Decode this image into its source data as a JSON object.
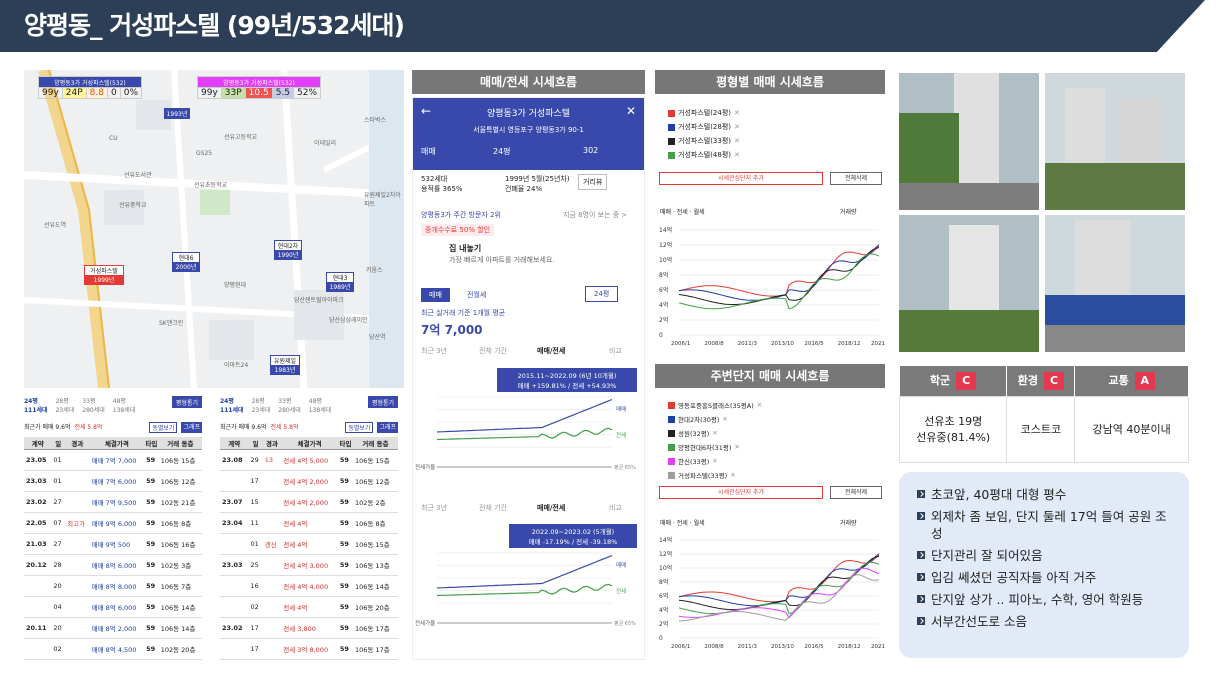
{
  "header": {
    "title": "양평동_ 거성파스텔 (99년/532세대)"
  },
  "panels": {
    "trend": "매매/전세 시세흐름",
    "pyeong": "평형별 매매 시세흐름",
    "nearby": "주변단지 매매 시세흐름"
  },
  "map": {
    "head_left": "양평동3가 거성파스텔(532)",
    "head_right": "양평동3가 거성파스텔(532)",
    "cells_left": [
      "99y",
      "24P",
      "8.8",
      "0",
      "0%"
    ],
    "cells_right": [
      "99y",
      "33P",
      "10.5",
      "5.5",
      "52%"
    ],
    "pins": [
      {
        "name": "",
        "year": "1993년"
      },
      {
        "name": "현대6",
        "year": "2000년"
      },
      {
        "name": "현대2차",
        "year": "1990년"
      },
      {
        "name": "현대3",
        "year": "1989년"
      },
      {
        "name": "거성파스텔",
        "year": "1999년"
      },
      {
        "name": "유원제일",
        "year": "1983년"
      }
    ],
    "labels": [
      "선유고등학교",
      "선유도서관",
      "선유중학교",
      "선유초등학교",
      "선유도역",
      "GS25",
      "SK앤크린",
      "양평현대",
      "CU",
      "이마트24",
      "당산센트럴아이파크",
      "당산역",
      "스타벅스",
      "이데일리",
      "유원제일2차아파트",
      "키움스",
      "당산삼성래미안"
    ]
  },
  "deals_left": {
    "pyeong": "24평",
    "units": "111세대",
    "alt": [
      "28평",
      "33평",
      "48평"
    ],
    "alt_units": [
      "23세대",
      "280세대",
      "138세대"
    ],
    "btn": "평형통기",
    "max": "최근가 매매 9.6억",
    "rent": "전세 5.8억",
    "btn2": "동별보기",
    "btn3": "그래프",
    "head": [
      "계약",
      "일",
      "경과",
      "체결가격",
      "타입",
      "거래 동층"
    ],
    "rows": [
      [
        "23.05",
        "01",
        "",
        "매매 7억 7,000",
        "59",
        "106동 15층"
      ],
      [
        "23.03",
        "01",
        "",
        "매매 7억 6,000",
        "59",
        "106동 12층"
      ],
      [
        "23.02",
        "27",
        "",
        "매매 7억 9,500",
        "59",
        "102동 21층"
      ],
      [
        "22.05",
        "07",
        "최고가",
        "매매 9억 6,000",
        "59",
        "106동 8층"
      ],
      [
        "21.03",
        "27",
        "",
        "매매 9억 500",
        "59",
        "106동 16층"
      ],
      [
        "20.12",
        "28",
        "",
        "매매 8억 6,000",
        "59",
        "102동 3층"
      ],
      [
        "",
        "20",
        "",
        "매매 8억 8,000",
        "59",
        "106동 7층"
      ],
      [
        "",
        "04",
        "",
        "매매 8억 6,000",
        "59",
        "106동 14층"
      ],
      [
        "20.11",
        "20",
        "",
        "매매 8억 2,000",
        "59",
        "106동 14층"
      ],
      [
        "",
        "02",
        "",
        "매매 8억 4,500",
        "59",
        "102동 20층"
      ]
    ]
  },
  "deals_right": {
    "pyeong": "24평",
    "units": "111세대",
    "alt": [
      "28평",
      "33평",
      "48평"
    ],
    "alt_units": [
      "23세대",
      "280세대",
      "138세대"
    ],
    "btn": "평형통기",
    "max": "최근가 매매 9.6억",
    "rent": "전세 5.8억",
    "btn2": "동별보기",
    "btn3": "그래프",
    "head": [
      "계약",
      "일",
      "경과",
      "체결가격",
      "타입",
      "거래 동층"
    ],
    "rows": [
      [
        "23.08",
        "29",
        "13",
        "전세 4억 5,000",
        "59",
        "106동 15층"
      ],
      [
        "",
        "17",
        "",
        "전세 4억 2,000",
        "59",
        "106동 12층"
      ],
      [
        "23.07",
        "15",
        "",
        "전세 4억 2,000",
        "59",
        "102동 2층"
      ],
      [
        "23.04",
        "11",
        "",
        "전세 4억",
        "59",
        "106동 8층"
      ],
      [
        "",
        "01",
        "갱신",
        "전세 4억",
        "59",
        "106동 15층"
      ],
      [
        "23.03",
        "25",
        "",
        "전세 4억 3,000",
        "59",
        "106동 13층"
      ],
      [
        "",
        "16",
        "",
        "전세 4억 4,000",
        "59",
        "106동 14층"
      ],
      [
        "",
        "02",
        "",
        "전세 4억",
        "59",
        "106동 20층"
      ],
      [
        "23.02",
        "17",
        "",
        "전세 3,800",
        "59",
        "106동 17층"
      ],
      [
        "",
        "17",
        "",
        "전세 3억 8,000",
        "59",
        "106동 17층"
      ]
    ]
  },
  "app": {
    "title": "양평동3가 거성파스텔",
    "addr": "서울특별시 영등포구 양평동3가 90-1",
    "tab1": "매매",
    "tab2": "24평",
    "comments": "302",
    "units": "532세대",
    "ratio": "용적률 365%",
    "built": "1999년 5월(25년차)",
    "bldg": "건폐율 24%",
    "dist": "거리뷰",
    "visitor": "양평동3가 주간 방문자 2위",
    "now": "지금 8명이 보는 중 >",
    "promo": "중개수수료 50% 할인",
    "sell": "집 내놓기",
    "sell_sub": "가장 빠르게 아파트를 거래해보세요.",
    "t_sale": "매매",
    "t_rent": "전월세",
    "sel": "24평",
    "avg_label": "최근 실거래 기준 1개월 평균",
    "avg": "7억 7,000",
    "tabs": [
      "최근 3년",
      "전체 기간",
      "매매/전세",
      "비교"
    ],
    "box1": "2015.11~2022.09 (6년 10개월)",
    "box1b": "매매 +159.81% / 전세 +54.93%",
    "box2": "2022.09~2023.02 (5개월)",
    "box2b": "매매 -17.19% / 전세 -39.18%",
    "sale": "매매",
    "rent": "전세",
    "gap": "전세가율",
    "gap_v": "평균 65%"
  },
  "pyeong_legend": [
    "거성파스텔(24평)",
    "거성파스텔(28평)",
    "거성파스텔(33평)",
    "거성파스텔(48평)"
  ],
  "pyeong_colors": [
    "#e53935",
    "#1e3ea8",
    "#222222",
    "#43a047"
  ],
  "nearby_legend": [
    "영등포중흥S클래스(35평A)",
    "현대2차(30평)",
    "성원(32평)",
    "양평현대6차(31평)",
    "한신(33평)",
    "거성파스텔(33평)"
  ],
  "nearby_colors": [
    "#e53935",
    "#1e3ea8",
    "#222222",
    "#43a047",
    "#e040fb",
    "#9e9e9e"
  ],
  "chart_ctrl": {
    "add": "시세관심단지 추가",
    "del": "전체삭제",
    "r1": "매매",
    "r2": "전세",
    "r3": "월세",
    "chk": "거래량"
  },
  "yaxis": [
    "14억",
    "12억",
    "10억",
    "8억",
    "6억",
    "4억",
    "2억",
    "0"
  ],
  "xaxis": [
    "2006/1",
    "2008/8",
    "2011/3",
    "2013/10",
    "2016/5",
    "2018/12",
    "2021/7"
  ],
  "rating": {
    "h": [
      "학군",
      "환경",
      "교통"
    ],
    "g": [
      "C",
      "C",
      "A"
    ],
    "v": [
      "선유초 19명\n선유중(81.4%)",
      "코스트코",
      "강남역 40분이내"
    ]
  },
  "notes": [
    "초코앞, 40평대 대형 평수",
    "외제차 좀 보임, 단지 둘레 17억 들여 공원 조성",
    "단지관리 잘 되어있음",
    "입김 쎄셨던 공직자들 아직 거주",
    "단지앞 상가 .. 피아노, 수학, 영어 학원등",
    "서부간선도로 소음"
  ]
}
